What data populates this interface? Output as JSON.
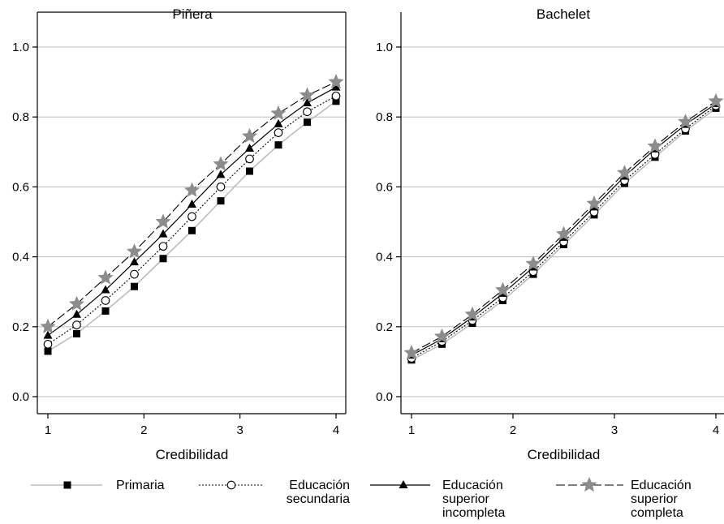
{
  "chart_data": [
    {
      "type": "line",
      "title": "Piñera",
      "xlabel": "Credibilidad",
      "ylabel": "",
      "xlim": [
        1,
        4
      ],
      "ylim": [
        0,
        1
      ],
      "xticks": [
        "1",
        "2",
        "3",
        "4"
      ],
      "yticks": [
        "0.0",
        "0.2",
        "0.4",
        "0.6",
        "0.8",
        "1.0"
      ],
      "grid": true,
      "x": [
        1,
        1.3,
        1.6,
        1.9,
        2.2,
        2.5,
        2.8,
        3.1,
        3.4,
        3.7,
        4
      ],
      "series": [
        {
          "name": "Primaria",
          "values": [
            0.13,
            0.18,
            0.245,
            0.315,
            0.395,
            0.475,
            0.56,
            0.645,
            0.72,
            0.785,
            0.845
          ]
        },
        {
          "name": "Educación secundaria",
          "values": [
            0.15,
            0.205,
            0.275,
            0.35,
            0.43,
            0.515,
            0.6,
            0.68,
            0.755,
            0.815,
            0.86
          ]
        },
        {
          "name": "Educación superior incompleta",
          "values": [
            0.175,
            0.235,
            0.305,
            0.385,
            0.465,
            0.55,
            0.635,
            0.71,
            0.78,
            0.84,
            0.885
          ]
        },
        {
          "name": "Educación superior completa",
          "values": [
            0.2,
            0.265,
            0.34,
            0.415,
            0.5,
            0.59,
            0.665,
            0.745,
            0.81,
            0.862,
            0.9
          ]
        }
      ]
    },
    {
      "type": "line",
      "title": "Bachelet",
      "xlabel": "Credibilidad",
      "ylabel": "",
      "xlim": [
        1,
        4
      ],
      "ylim": [
        0,
        1
      ],
      "xticks": [
        "1",
        "2",
        "3",
        "4"
      ],
      "yticks": [
        "0.0",
        "0.2",
        "0.4",
        "0.6",
        "0.8",
        "1.0"
      ],
      "grid": true,
      "x": [
        1,
        1.3,
        1.6,
        1.9,
        2.2,
        2.5,
        2.8,
        3.1,
        3.4,
        3.7,
        4
      ],
      "series": [
        {
          "name": "Primaria",
          "values": [
            0.105,
            0.15,
            0.21,
            0.275,
            0.35,
            0.435,
            0.52,
            0.61,
            0.685,
            0.76,
            0.825
          ]
        },
        {
          "name": "Educación secundaria",
          "values": [
            0.11,
            0.158,
            0.218,
            0.283,
            0.358,
            0.443,
            0.528,
            0.618,
            0.693,
            0.766,
            0.832
          ]
        },
        {
          "name": "Educación superior incompleta",
          "values": [
            0.118,
            0.165,
            0.227,
            0.295,
            0.37,
            0.455,
            0.542,
            0.63,
            0.708,
            0.778,
            0.838
          ]
        },
        {
          "name": "Educación superior completa",
          "values": [
            0.125,
            0.172,
            0.235,
            0.305,
            0.38,
            0.465,
            0.552,
            0.64,
            0.716,
            0.786,
            0.845
          ]
        }
      ]
    }
  ],
  "legend": {
    "position": "bottom",
    "items": [
      {
        "lines": [
          "Primaria"
        ]
      },
      {
        "lines": [
          "Educación",
          "secundaria"
        ]
      },
      {
        "lines": [
          "Educación",
          "superior",
          "incompleta"
        ]
      },
      {
        "lines": [
          "Educación",
          "superior",
          "completa"
        ]
      }
    ]
  },
  "colors": {
    "primaria": "#bdbdbd",
    "secundaria": "#000000",
    "incompleta": "#000000",
    "completa": "#8c8c8c",
    "grid": "#bdbdbd",
    "axis": "#000000"
  }
}
